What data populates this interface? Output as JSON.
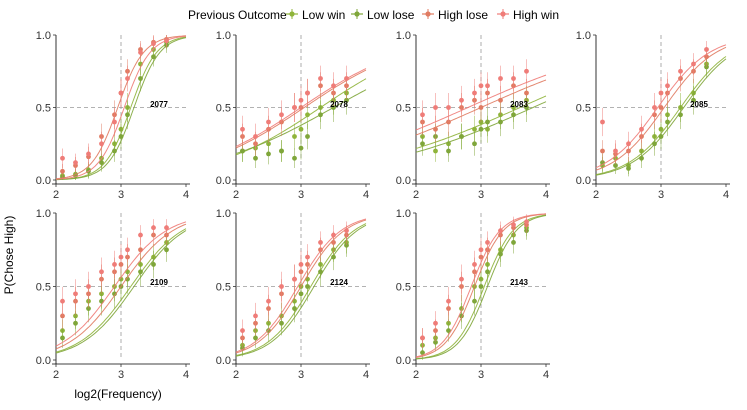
{
  "legend": {
    "title": "Previous Outcome",
    "entries": [
      {
        "name": "Low win",
        "color": "#8fb43a"
      },
      {
        "name": "Low lose",
        "color": "#7fa63a"
      },
      {
        "name": "High lose",
        "color": "#e07b62"
      },
      {
        "name": "High win",
        "color": "#ef7c78"
      }
    ]
  },
  "xlabel": "log2(Frequency)",
  "ylabel": "P(Chose High)",
  "chart_data": {
    "type": "scatter",
    "layout": "facet-grid 2 rows x 4 columns",
    "xlim": [
      2,
      4
    ],
    "ylim": [
      0,
      1
    ],
    "xticks": [
      2,
      3,
      4
    ],
    "yticks": [
      0.0,
      0.5,
      1.0
    ],
    "ytick_labels": [
      "0.0",
      "0.5",
      "1.0"
    ],
    "reference_lines": {
      "x": 3,
      "y": 0.5,
      "style": "dashed"
    },
    "x": [
      2.1,
      2.3,
      2.5,
      2.7,
      2.9,
      3.0,
      3.1,
      3.3,
      3.5,
      3.7
    ],
    "panels": [
      {
        "label": "2077",
        "series": [
          {
            "name": "Low win",
            "fit": {
              "x0": 3.15,
              "k": 5.0
            },
            "values": [
              0.03,
              0.04,
              0.07,
              0.15,
              0.25,
              0.35,
              0.5,
              0.8,
              0.9,
              0.95
            ]
          },
          {
            "name": "Low lose",
            "fit": {
              "x0": 3.2,
              "k": 5.0
            },
            "values": [
              0.02,
              0.03,
              0.06,
              0.12,
              0.2,
              0.3,
              0.45,
              0.7,
              0.85,
              0.93
            ]
          },
          {
            "name": "High lose",
            "fit": {
              "x0": 2.95,
              "k": 5.0
            },
            "values": [
              0.06,
              0.1,
              0.16,
              0.3,
              0.45,
              0.6,
              0.75,
              0.9,
              0.95,
              0.97
            ]
          },
          {
            "name": "High win",
            "fit": {
              "x0": 3.05,
              "k": 5.0
            },
            "values": [
              0.15,
              0.12,
              0.18,
              0.25,
              0.4,
              0.6,
              0.7,
              0.88,
              0.94,
              0.96
            ]
          }
        ]
      },
      {
        "label": "2078",
        "series": [
          {
            "name": "Low win",
            "fit": {
              "x0": 3.3,
              "k": 1.2
            },
            "values": [
              0.2,
              0.22,
              0.25,
              0.2,
              0.3,
              0.35,
              0.45,
              0.5,
              0.55,
              0.6
            ]
          },
          {
            "name": "Low lose",
            "fit": {
              "x0": 3.5,
              "k": 1.0
            },
            "values": [
              0.2,
              0.15,
              0.18,
              0.2,
              0.15,
              0.22,
              0.3,
              0.45,
              0.5,
              0.55
            ]
          },
          {
            "name": "High lose",
            "fit": {
              "x0": 3.05,
              "k": 1.2
            },
            "values": [
              0.3,
              0.25,
              0.35,
              0.4,
              0.5,
              0.5,
              0.6,
              0.65,
              0.6,
              0.65
            ]
          },
          {
            "name": "High win",
            "fit": {
              "x0": 3.0,
              "k": 1.2
            },
            "values": [
              0.35,
              0.3,
              0.4,
              0.45,
              0.5,
              0.55,
              0.6,
              0.7,
              0.65,
              0.7
            ]
          }
        ]
      },
      {
        "label": "2083",
        "series": [
          {
            "name": "Low win",
            "fit": {
              "x0": 3.6,
              "k": 0.8
            },
            "values": [
              0.3,
              0.2,
              0.25,
              0.3,
              0.35,
              0.4,
              0.35,
              0.45,
              0.5,
              0.55
            ]
          },
          {
            "name": "Low lose",
            "fit": {
              "x0": 3.8,
              "k": 0.8
            },
            "values": [
              0.25,
              0.3,
              0.2,
              0.3,
              0.25,
              0.35,
              0.4,
              0.4,
              0.45,
              0.5
            ]
          },
          {
            "name": "High lose",
            "fit": {
              "x0": 3.0,
              "k": 0.8
            },
            "values": [
              0.4,
              0.35,
              0.4,
              0.5,
              0.55,
              0.5,
              0.6,
              0.55,
              0.65,
              0.6
            ]
          },
          {
            "name": "High win",
            "fit": {
              "x0": 2.8,
              "k": 0.8
            },
            "values": [
              0.45,
              0.5,
              0.5,
              0.55,
              0.6,
              0.65,
              0.65,
              0.7,
              0.7,
              0.75
            ]
          }
        ]
      },
      {
        "label": "2085",
        "series": [
          {
            "name": "Low win",
            "fit": {
              "x0": 3.3,
              "k": 2.5
            },
            "values": [
              0.1,
              0.15,
              0.1,
              0.2,
              0.3,
              0.35,
              0.45,
              0.5,
              0.6,
              0.8
            ]
          },
          {
            "name": "Low lose",
            "fit": {
              "x0": 3.35,
              "k": 2.5
            },
            "values": [
              0.12,
              0.1,
              0.08,
              0.15,
              0.25,
              0.3,
              0.4,
              0.45,
              0.55,
              0.78
            ]
          },
          {
            "name": "High lose",
            "fit": {
              "x0": 3.05,
              "k": 2.5
            },
            "values": [
              0.2,
              0.18,
              0.2,
              0.3,
              0.45,
              0.5,
              0.6,
              0.7,
              0.75,
              0.85
            ]
          },
          {
            "name": "High win",
            "fit": {
              "x0": 2.95,
              "k": 2.5
            },
            "values": [
              0.4,
              0.2,
              0.25,
              0.35,
              0.5,
              0.6,
              0.65,
              0.75,
              0.8,
              0.9
            ]
          }
        ]
      },
      {
        "label": "2109",
        "series": [
          {
            "name": "Low win",
            "fit": {
              "x0": 3.15,
              "k": 2.5
            },
            "values": [
              0.2,
              0.3,
              0.4,
              0.45,
              0.5,
              0.55,
              0.6,
              0.65,
              0.7,
              0.8
            ]
          },
          {
            "name": "Low lose",
            "fit": {
              "x0": 3.2,
              "k": 2.5
            },
            "values": [
              0.15,
              0.25,
              0.35,
              0.4,
              0.45,
              0.5,
              0.55,
              0.6,
              0.65,
              0.75
            ]
          },
          {
            "name": "High lose",
            "fit": {
              "x0": 3.0,
              "k": 2.5
            },
            "values": [
              0.3,
              0.4,
              0.45,
              0.55,
              0.6,
              0.65,
              0.7,
              0.75,
              0.85,
              0.85
            ]
          },
          {
            "name": "High win",
            "fit": {
              "x0": 2.9,
              "k": 2.5
            },
            "values": [
              0.4,
              0.45,
              0.5,
              0.6,
              0.65,
              0.7,
              0.75,
              0.85,
              0.9,
              0.9
            ]
          }
        ]
      },
      {
        "label": "2124",
        "series": [
          {
            "name": "Low win",
            "fit": {
              "x0": 3.15,
              "k": 3.0
            },
            "values": [
              0.1,
              0.2,
              0.25,
              0.3,
              0.4,
              0.5,
              0.55,
              0.65,
              0.75,
              0.8
            ]
          },
          {
            "name": "Low lose",
            "fit": {
              "x0": 3.2,
              "k": 3.0
            },
            "values": [
              0.08,
              0.15,
              0.2,
              0.25,
              0.35,
              0.45,
              0.5,
              0.6,
              0.7,
              0.78
            ]
          },
          {
            "name": "High lose",
            "fit": {
              "x0": 3.0,
              "k": 3.0
            },
            "values": [
              0.15,
              0.25,
              0.35,
              0.45,
              0.55,
              0.6,
              0.65,
              0.75,
              0.8,
              0.85
            ]
          },
          {
            "name": "High win",
            "fit": {
              "x0": 2.95,
              "k": 3.0
            },
            "values": [
              0.2,
              0.3,
              0.4,
              0.5,
              0.55,
              0.65,
              0.7,
              0.8,
              0.85,
              0.88
            ]
          }
        ]
      },
      {
        "label": "2143",
        "series": [
          {
            "name": "Low win",
            "fit": {
              "x0": 3.05,
              "k": 4.5
            },
            "values": [
              0.1,
              0.15,
              0.25,
              0.35,
              0.5,
              0.55,
              0.65,
              0.75,
              0.85,
              0.9
            ]
          },
          {
            "name": "Low lose",
            "fit": {
              "x0": 3.1,
              "k": 4.5
            },
            "values": [
              0.05,
              0.12,
              0.2,
              0.3,
              0.4,
              0.5,
              0.6,
              0.72,
              0.8,
              0.88
            ]
          },
          {
            "name": "High lose",
            "fit": {
              "x0": 2.9,
              "k": 4.5
            },
            "values": [
              0.15,
              0.2,
              0.35,
              0.5,
              0.6,
              0.7,
              0.75,
              0.85,
              0.9,
              0.92
            ]
          },
          {
            "name": "High win",
            "fit": {
              "x0": 2.85,
              "k": 4.5
            },
            "values": [
              0.15,
              0.25,
              0.4,
              0.55,
              0.65,
              0.75,
              0.8,
              0.88,
              0.92,
              0.94
            ]
          }
        ]
      }
    ]
  }
}
